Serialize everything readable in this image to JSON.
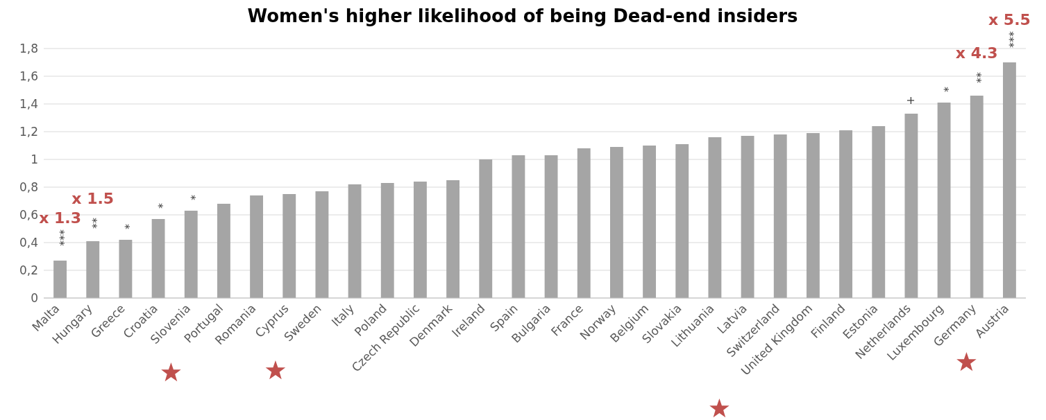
{
  "chart_data": {
    "type": "bar",
    "title": "Women's higher likelihood of being Dead-end insiders",
    "categories": [
      "Malta",
      "Hungary",
      "Greece",
      "Croatia",
      "Slovenia",
      "Portugal",
      "Romania",
      "Cyprus",
      "Sweden",
      "Italy",
      "Poland",
      "Czech Republic",
      "Denmark",
      "Ireland",
      "Spain",
      "Bulgaria",
      "France",
      "Norway",
      "Belgium",
      "Slovakia",
      "Lithuania",
      "Latvia",
      "Switzerland",
      "United Kingdom",
      "Finland",
      "Estonia",
      "Netherlands",
      "Luxembourg",
      "Germany",
      "Austria"
    ],
    "values": [
      0.27,
      0.41,
      0.42,
      0.57,
      0.63,
      0.68,
      0.74,
      0.75,
      0.77,
      0.82,
      0.83,
      0.84,
      0.85,
      1.0,
      1.03,
      1.03,
      1.08,
      1.09,
      1.1,
      1.11,
      1.16,
      1.17,
      1.18,
      1.19,
      1.21,
      1.24,
      1.33,
      1.41,
      1.46,
      1.7
    ],
    "color": "#a5a5a5",
    "ylim": [
      0,
      1.8
    ],
    "yticks": [
      0,
      {
        "value": 0.2,
        "label": "0,2"
      },
      {
        "value": 0.4,
        "label": "0,4"
      },
      {
        "value": 0.6,
        "label": "0,6"
      },
      {
        "value": 0.8,
        "label": "0,8"
      },
      1,
      {
        "value": 1.2,
        "label": "1,2"
      },
      {
        "value": 1.4,
        "label": "1,4"
      },
      {
        "value": 1.6,
        "label": "1,6"
      },
      {
        "value": 1.8,
        "label": "1,8"
      }
    ],
    "grid": "y",
    "annotations": [
      {
        "text": "***",
        "x": "Malta",
        "y": 0.27
      },
      {
        "text": "**",
        "x": "Hungary",
        "y": 0.41
      },
      {
        "text": "*",
        "x": "Greece",
        "y": 0.42
      },
      {
        "text": "*",
        "x": "Croatia",
        "y": 0.57
      },
      {
        "text": "*",
        "x": "Slovenia",
        "y": 0.63
      },
      {
        "text": "+",
        "x": "Netherlands",
        "y": 1.33
      },
      {
        "text": "*",
        "x": "Luxembourg",
        "y": 1.41
      },
      {
        "text": "**",
        "x": "Germany",
        "y": 1.46
      },
      {
        "text": "***",
        "x": "Austria",
        "y": 1.7
      },
      {
        "text": "x 1.3",
        "x": "Malta",
        "y": 0.27
      },
      {
        "text": "x 1.5",
        "x": "Hungary",
        "y": 0.41
      },
      {
        "text": "x 4.3",
        "x": "Germany",
        "y": 1.46
      },
      {
        "text": "x 5.5",
        "x": "Austria",
        "y": 1.7
      }
    ]
  }
}
